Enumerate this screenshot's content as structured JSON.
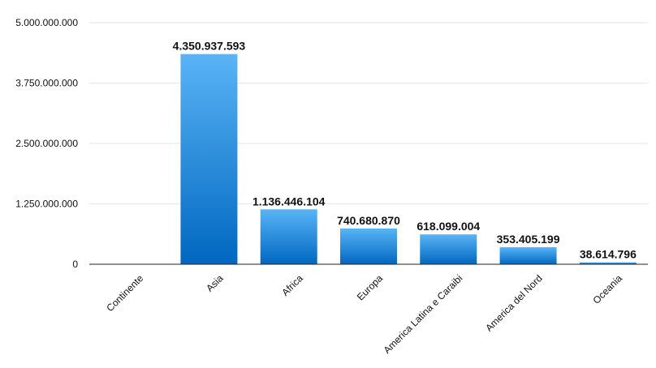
{
  "chart_data": {
    "type": "bar",
    "categories": [
      "Continente",
      "Asia",
      "Africa",
      "Europa",
      "America Latina e Caraibi",
      "America del Nord",
      "Oceania"
    ],
    "values": [
      0,
      4350937593,
      1136446104,
      740680870,
      618099004,
      353405199,
      38614796
    ],
    "data_labels": [
      "",
      "4.350.937.593",
      "1.136.446.104",
      "740.680.870",
      "618.099.004",
      "353.405.199",
      "38.614.796"
    ],
    "ylim": [
      0,
      5000000000
    ],
    "yticks": [
      0,
      1250000000,
      2500000000,
      3750000000,
      5000000000
    ],
    "ytick_labels": [
      "0",
      "1.250.000.000",
      "2.500.000.000",
      "3.750.000.000",
      "5.000.000.000"
    ],
    "grid": true,
    "legend": "none",
    "colors": {
      "bar_top": "#5ab4f6",
      "bar_bottom": "#0067c0",
      "grid": "#e6e6e6",
      "axis": "#222222"
    }
  }
}
